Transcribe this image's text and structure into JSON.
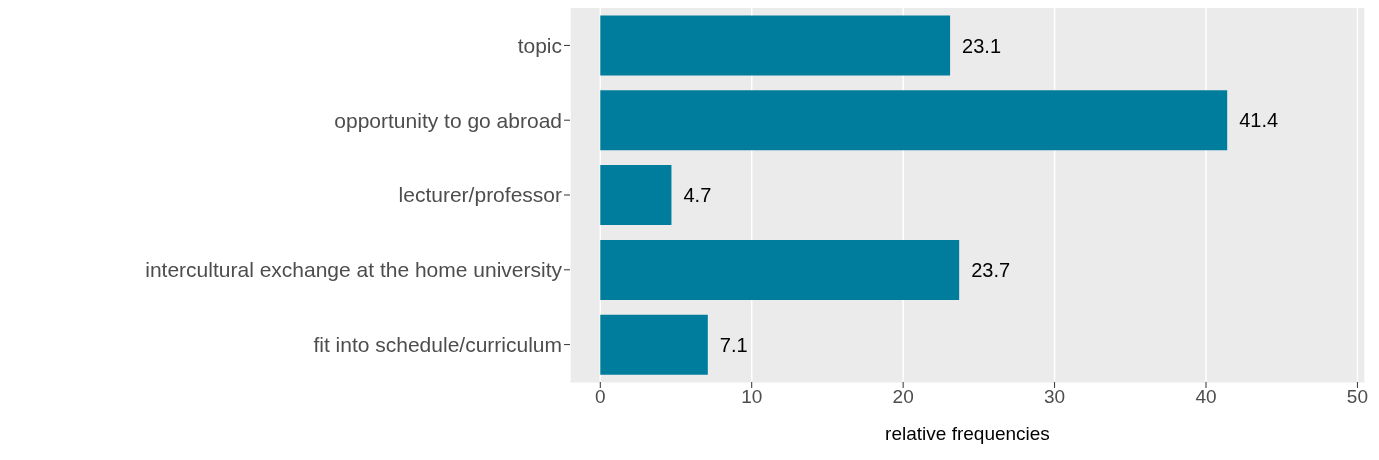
{
  "chart_data": {
    "type": "bar",
    "orientation": "horizontal",
    "categories": [
      "topic",
      "opportunity to go abroad",
      "lecturer/professor",
      "intercultural exchange at the home university",
      "fit into schedule/curriculum"
    ],
    "values": [
      23.1,
      41.4,
      4.7,
      23.7,
      7.1
    ],
    "color": "#007c9c",
    "xlabel": "relative frequencies",
    "xlim": [
      -2,
      50.5
    ],
    "xticks": [
      0,
      10,
      20,
      30,
      40,
      50
    ],
    "grid": "x",
    "data_labels": true,
    "legend": false
  }
}
